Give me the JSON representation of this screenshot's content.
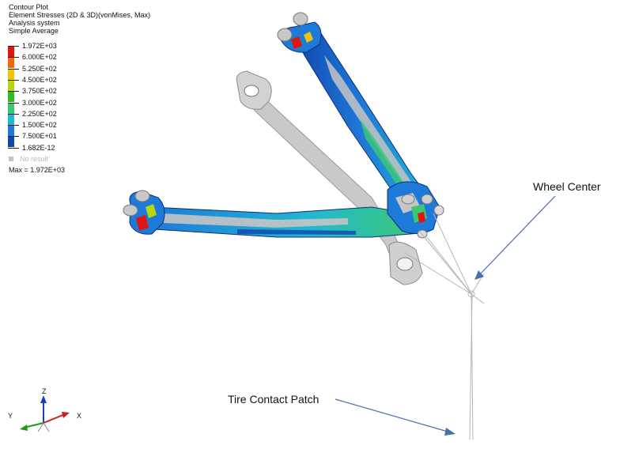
{
  "header": {
    "title": "Contour Plot",
    "result_type": "Element Stresses (2D & 3D)(vonMises, Max)",
    "system": "Analysis system",
    "averaging": "Simple Average"
  },
  "legend": {
    "entries": [
      {
        "label": "1.972E+03",
        "color": "#e0160e"
      },
      {
        "label": "6.000E+02",
        "color": "#f2660c"
      },
      {
        "label": "5.250E+02",
        "color": "#f4c20a"
      },
      {
        "label": "4.500E+02",
        "color": "#b8d60f"
      },
      {
        "label": "3.750E+02",
        "color": "#34b82a"
      },
      {
        "label": "3.000E+02",
        "color": "#3cc873"
      },
      {
        "label": "2.250E+02",
        "color": "#22b8d0"
      },
      {
        "label": "1.500E+02",
        "color": "#1e7ad8"
      },
      {
        "label": "7.500E+01",
        "color": "#1246b0"
      },
      {
        "label": "1.682E-12",
        "color": "#c0c0c0"
      }
    ],
    "no_result_label": "No result",
    "no_result_color": "#c4c4c4",
    "max_label": "Max = 1.972E+03"
  },
  "annotations": {
    "wheel_center": "Wheel Center",
    "tire_contact_patch": "Tire Contact Patch",
    "arrow_color": "#4a6fa8"
  },
  "triad": {
    "z_label": "Z",
    "y_label": "Y",
    "x_label": "X"
  }
}
